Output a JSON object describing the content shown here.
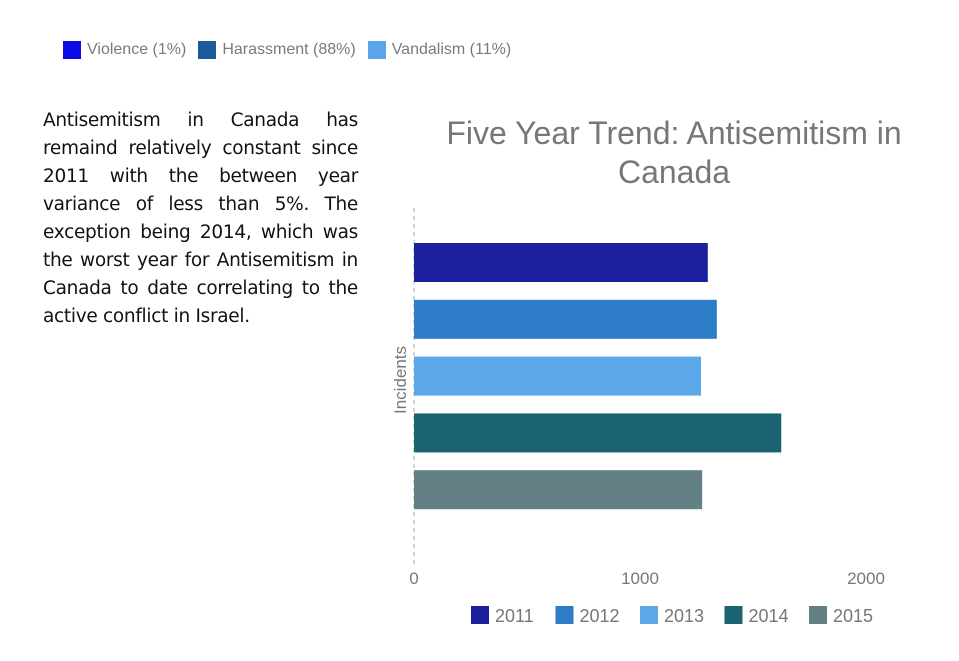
{
  "top_legend": [
    {
      "label": "Violence (1%)",
      "color": "#0a0ae6"
    },
    {
      "label": "Harassment (88%)",
      "color": "#1a5a9a"
    },
    {
      "label": "Vandalism (11%)",
      "color": "#5aa5ea"
    }
  ],
  "paragraph": "Antisemitism in Canada has remaind relatively constant since 2011 with the between year variance of less than 5%. The exception being 2014, which was the worst year for Antisemitism in Canada to date correlating to the active conflict in Israel.",
  "chart_data": {
    "type": "bar",
    "orientation": "horizontal",
    "title_lines": [
      "Five Year Trend: Antisemitism in",
      "Canada"
    ],
    "ylabel": "Incidents",
    "xlabel": "",
    "xlim": [
      0,
      2000
    ],
    "x_ticks": [
      "0",
      "1000",
      "2000"
    ],
    "grid": false,
    "legend_placement": "bottom",
    "series": [
      {
        "name": "2011",
        "value": 1300,
        "color": "#1a1f9c"
      },
      {
        "name": "2012",
        "value": 1340,
        "color": "#2e7dc8"
      },
      {
        "name": "2013",
        "value": 1270,
        "color": "#5ca6ea"
      },
      {
        "name": "2014",
        "value": 1625,
        "color": "#1a6370"
      },
      {
        "name": "2015",
        "value": 1275,
        "color": "#628085"
      }
    ]
  }
}
